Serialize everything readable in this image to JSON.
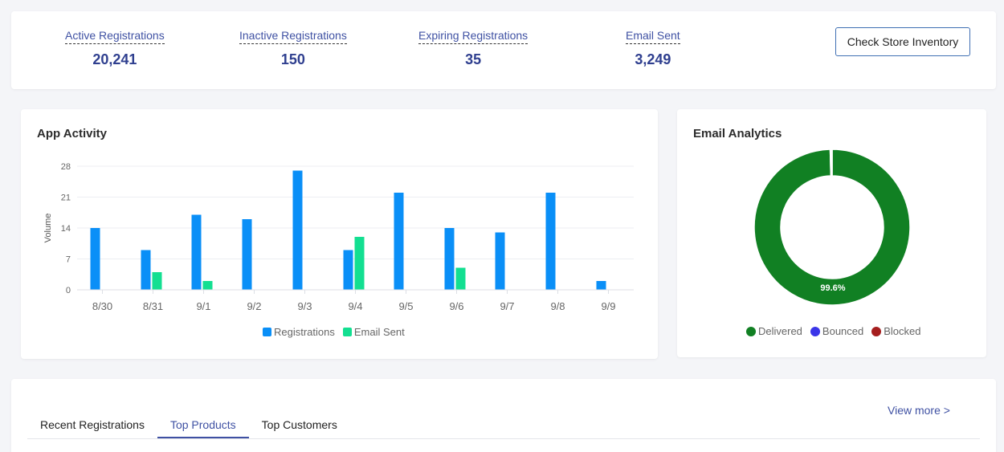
{
  "stats": [
    {
      "label": "Active Registrations",
      "value": "20,241"
    },
    {
      "label": "Inactive Registrations",
      "value": "150"
    },
    {
      "label": "Expiring Registrations",
      "value": "35"
    },
    {
      "label": "Email Sent",
      "value": "3,249"
    }
  ],
  "inventory_button": "Check Store Inventory",
  "activity": {
    "title": "App Activity",
    "legend": [
      "Registrations",
      "Email Sent"
    ]
  },
  "email_analytics": {
    "title": "Email Analytics",
    "center_label": "99.6%",
    "legend": [
      "Delivered",
      "Bounced",
      "Blocked"
    ]
  },
  "tabs": [
    "Recent Registrations",
    "Top Products",
    "Top Customers"
  ],
  "active_tab": "Top Products",
  "view_more": "View more >",
  "colors": {
    "registrations": "#0a8ff7",
    "email_sent": "#13df91",
    "delivered": "#118023",
    "bounced": "#3a35e8",
    "blocked": "#a51e1e",
    "accent": "#3f51a3"
  },
  "chart_data": [
    {
      "type": "bar",
      "title": "App Activity",
      "xlabel": "",
      "ylabel": "Volume",
      "categories": [
        "8/30",
        "8/31",
        "9/1",
        "9/2",
        "9/3",
        "9/4",
        "9/5",
        "9/6",
        "9/7",
        "9/8",
        "9/9"
      ],
      "series": [
        {
          "name": "Registrations",
          "values": [
            14,
            9,
            17,
            16,
            27,
            9,
            22,
            14,
            13,
            22,
            2
          ]
        },
        {
          "name": "Email Sent",
          "values": [
            0,
            4,
            2,
            0,
            0,
            12,
            0,
            5,
            0,
            0,
            0
          ]
        }
      ],
      "yticks": [
        0,
        7,
        14,
        21,
        28
      ],
      "ylim": [
        0,
        28
      ],
      "grid": true,
      "legend_position": "bottom"
    },
    {
      "type": "pie",
      "title": "Email Analytics",
      "donut": true,
      "labels": [
        "Delivered",
        "Bounced",
        "Blocked"
      ],
      "values": [
        99.6,
        0.2,
        0.2
      ],
      "data_labels": [
        "99.6%"
      ],
      "legend_position": "bottom"
    }
  ]
}
